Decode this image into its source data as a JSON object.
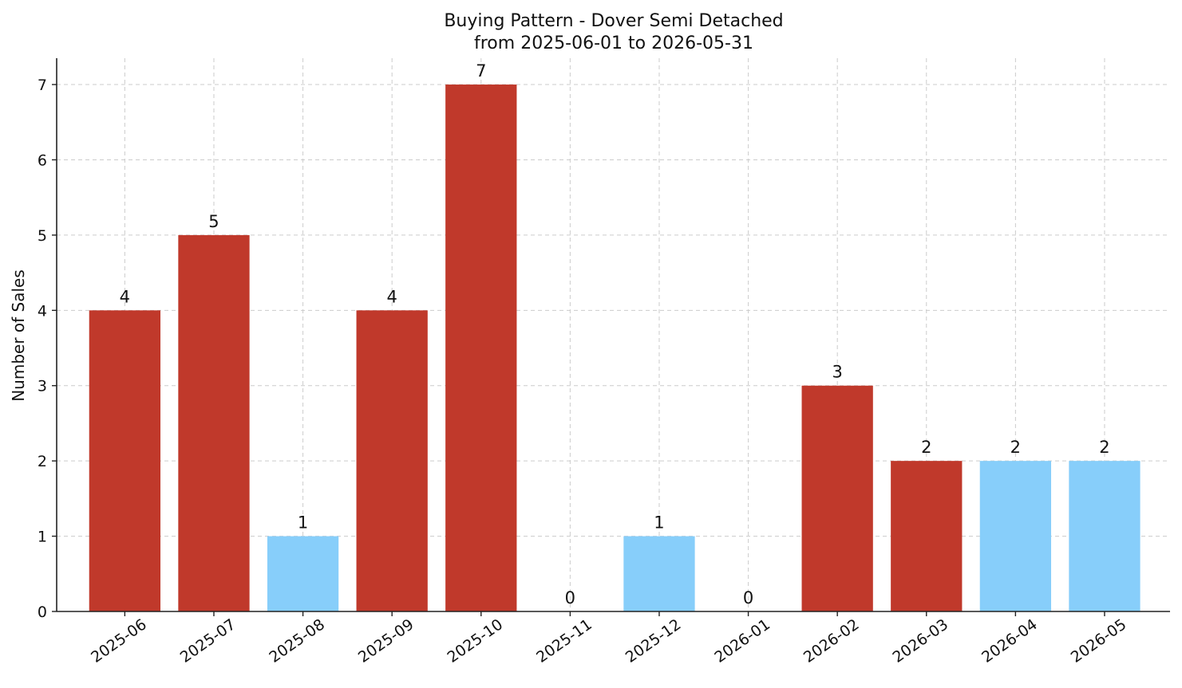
{
  "chart_data": {
    "type": "bar",
    "title": "Buying Pattern - Dover Semi Detached",
    "subtitle": "from 2025-06-01 to 2026-05-31",
    "xlabel": "",
    "ylabel": "Number of Sales",
    "categories": [
      "2025-06",
      "2025-07",
      "2025-08",
      "2025-09",
      "2025-10",
      "2025-11",
      "2025-12",
      "2026-01",
      "2026-02",
      "2026-03",
      "2026-04",
      "2026-05"
    ],
    "values": [
      4,
      5,
      1,
      4,
      7,
      0,
      1,
      0,
      3,
      2,
      2,
      2
    ],
    "bar_colors": [
      "#c0392b",
      "#c0392b",
      "#87cefa",
      "#c0392b",
      "#c0392b",
      "#87cefa",
      "#87cefa",
      "#87cefa",
      "#c0392b",
      "#c0392b",
      "#87cefa",
      "#87cefa"
    ],
    "ylim": [
      0,
      7.35
    ],
    "yticks": [
      0,
      1,
      2,
      3,
      4,
      5,
      6,
      7
    ],
    "grid": true,
    "legend": "none"
  }
}
